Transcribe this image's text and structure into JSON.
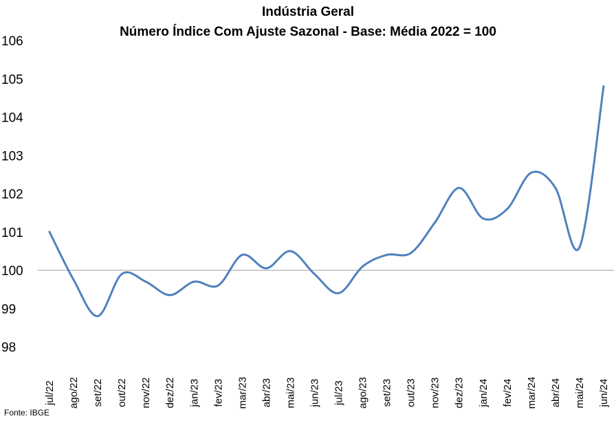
{
  "chart_data": {
    "type": "line",
    "title": "Indústria Geral",
    "subtitle": "Número Índice Com Ajuste Sazonal - Base: Média 2022 = 100",
    "categories": [
      "jul/22",
      "ago/22",
      "set/22",
      "out/22",
      "nov/22",
      "dez/22",
      "jan/23",
      "fev/23",
      "mar/23",
      "abr/23",
      "mai/23",
      "jun/23",
      "jul/23",
      "ago/23",
      "set/23",
      "out/23",
      "nov/23",
      "dez/23",
      "jan/24",
      "fev/24",
      "mar/24",
      "abr/24",
      "mai/24",
      "jun/24"
    ],
    "series": [
      {
        "values": [
          101.0,
          99.75,
          98.8,
          99.9,
          99.7,
          99.35,
          99.7,
          99.6,
          100.4,
          100.05,
          100.5,
          99.9,
          99.4,
          100.1,
          100.4,
          100.45,
          101.25,
          102.15,
          101.35,
          101.6,
          102.55,
          102.15,
          100.6,
          104.8
        ]
      }
    ],
    "ylim": [
      98,
      106
    ],
    "yticks": [
      "98",
      "99",
      "100",
      "101",
      "102",
      "103",
      "104",
      "105",
      "106"
    ],
    "reference_line": 100,
    "grid": false,
    "line_color": "#4f81bd",
    "axis_color": "#a6a6a6"
  },
  "source": "Fonte: IBGE"
}
